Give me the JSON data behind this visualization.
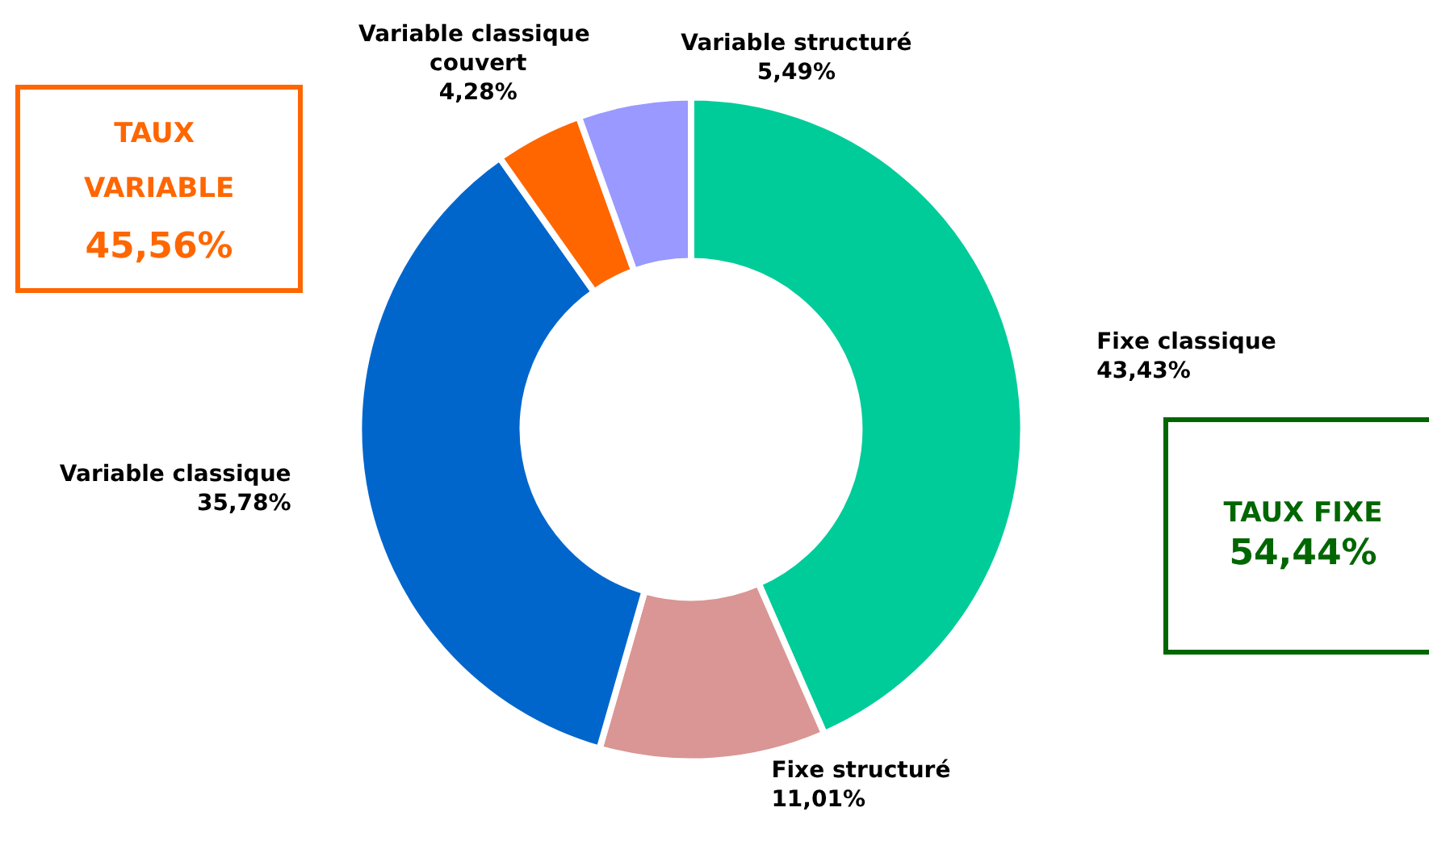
{
  "chart_data": {
    "type": "donut",
    "categories": [
      "Fixe classique",
      "Fixe structuré",
      "Variable classique",
      "Variable classique couvert",
      "Variable structuré"
    ],
    "values": [
      43.43,
      11.01,
      35.78,
      4.28,
      5.49
    ],
    "value_labels": [
      "43,43%",
      "11,01%",
      "35,78%",
      "4,28%",
      "5,49%"
    ],
    "colors": [
      "#00cc99",
      "#d99694",
      "#0066cc",
      "#ff6600",
      "#9999ff"
    ],
    "annotations": [
      "TAUX VARIABLE",
      "45,56%",
      "TAUX FIXE",
      "54,44%"
    ],
    "legend": false
  }
}
